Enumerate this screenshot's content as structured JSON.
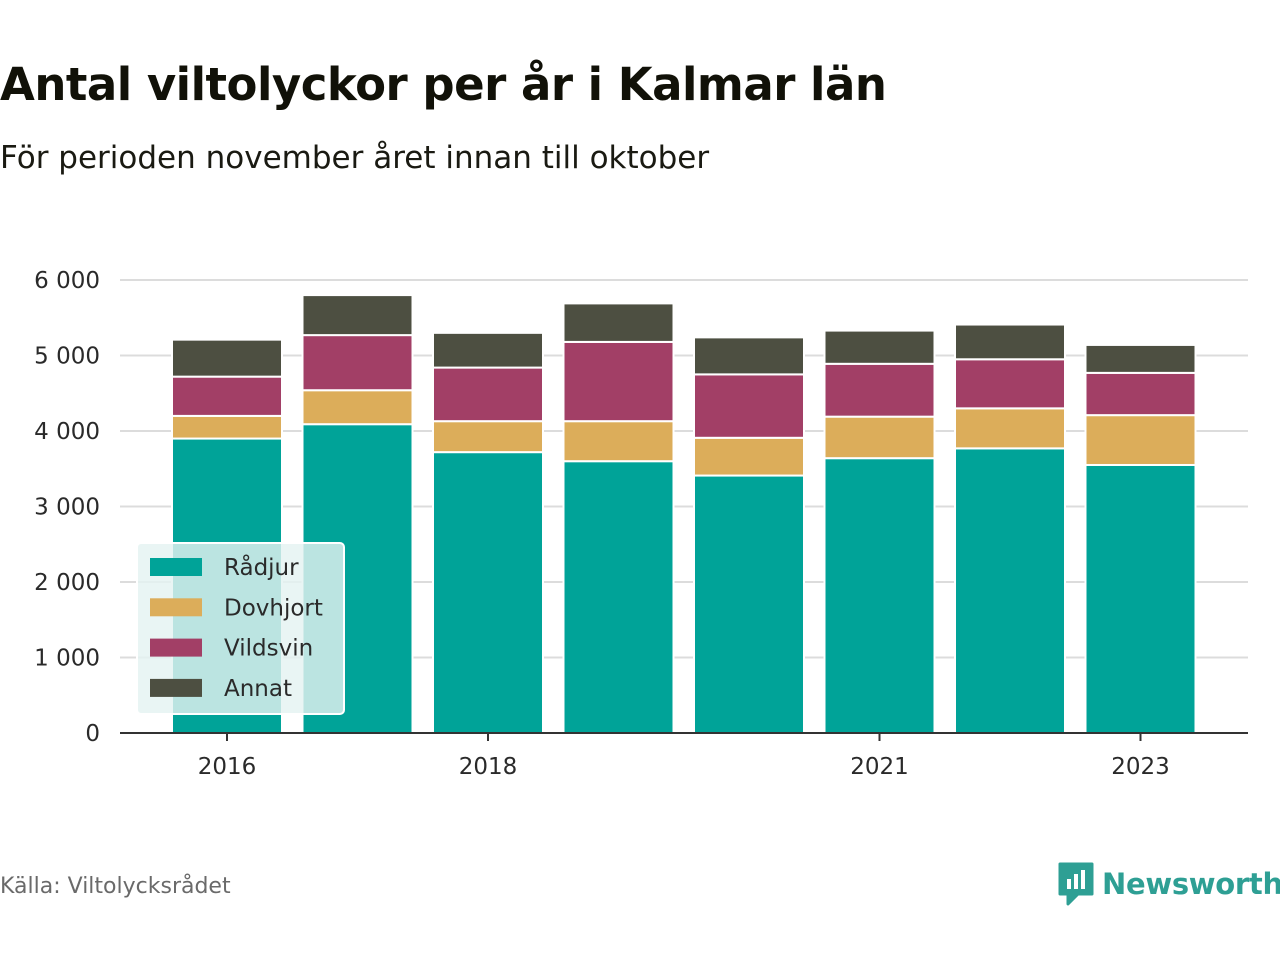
{
  "title": "Antal viltolyckor per år i Kalmar län",
  "subtitle": "För perioden november året innan till oktober",
  "source": "Källa: Viltolycksrådet",
  "brand": "Newsworthy",
  "colors": {
    "Rådjur": "#00a398",
    "Dovhjort": "#dcad5a",
    "Vildsvin": "#a23f66",
    "Annat": "#4d4f41",
    "brand": "#2e9f94"
  },
  "chart_data": {
    "type": "bar",
    "stacked": true,
    "categories": [
      "2016",
      "2017",
      "2018",
      "2019",
      "2020",
      "2021",
      "2022",
      "2023"
    ],
    "x_tick_labels": [
      "2016",
      "",
      "2018",
      "",
      "",
      "2021",
      "",
      "2023"
    ],
    "y_ticks": [
      "0",
      "1 000",
      "2 000",
      "3 000",
      "4 000",
      "5 000",
      "6 000"
    ],
    "ylim": [
      0,
      6000
    ],
    "grid": true,
    "legend_position": "bottom-left",
    "series": [
      {
        "name": "Rådjur",
        "values": [
          3900,
          4090,
          3720,
          3600,
          3410,
          3640,
          3770,
          3550
        ]
      },
      {
        "name": "Dovhjort",
        "values": [
          300,
          450,
          410,
          530,
          500,
          550,
          530,
          660
        ]
      },
      {
        "name": "Vildsvin",
        "values": [
          520,
          730,
          710,
          1050,
          840,
          700,
          650,
          560
        ]
      },
      {
        "name": "Annat",
        "values": [
          490,
          530,
          460,
          510,
          490,
          440,
          460,
          370
        ]
      }
    ]
  }
}
